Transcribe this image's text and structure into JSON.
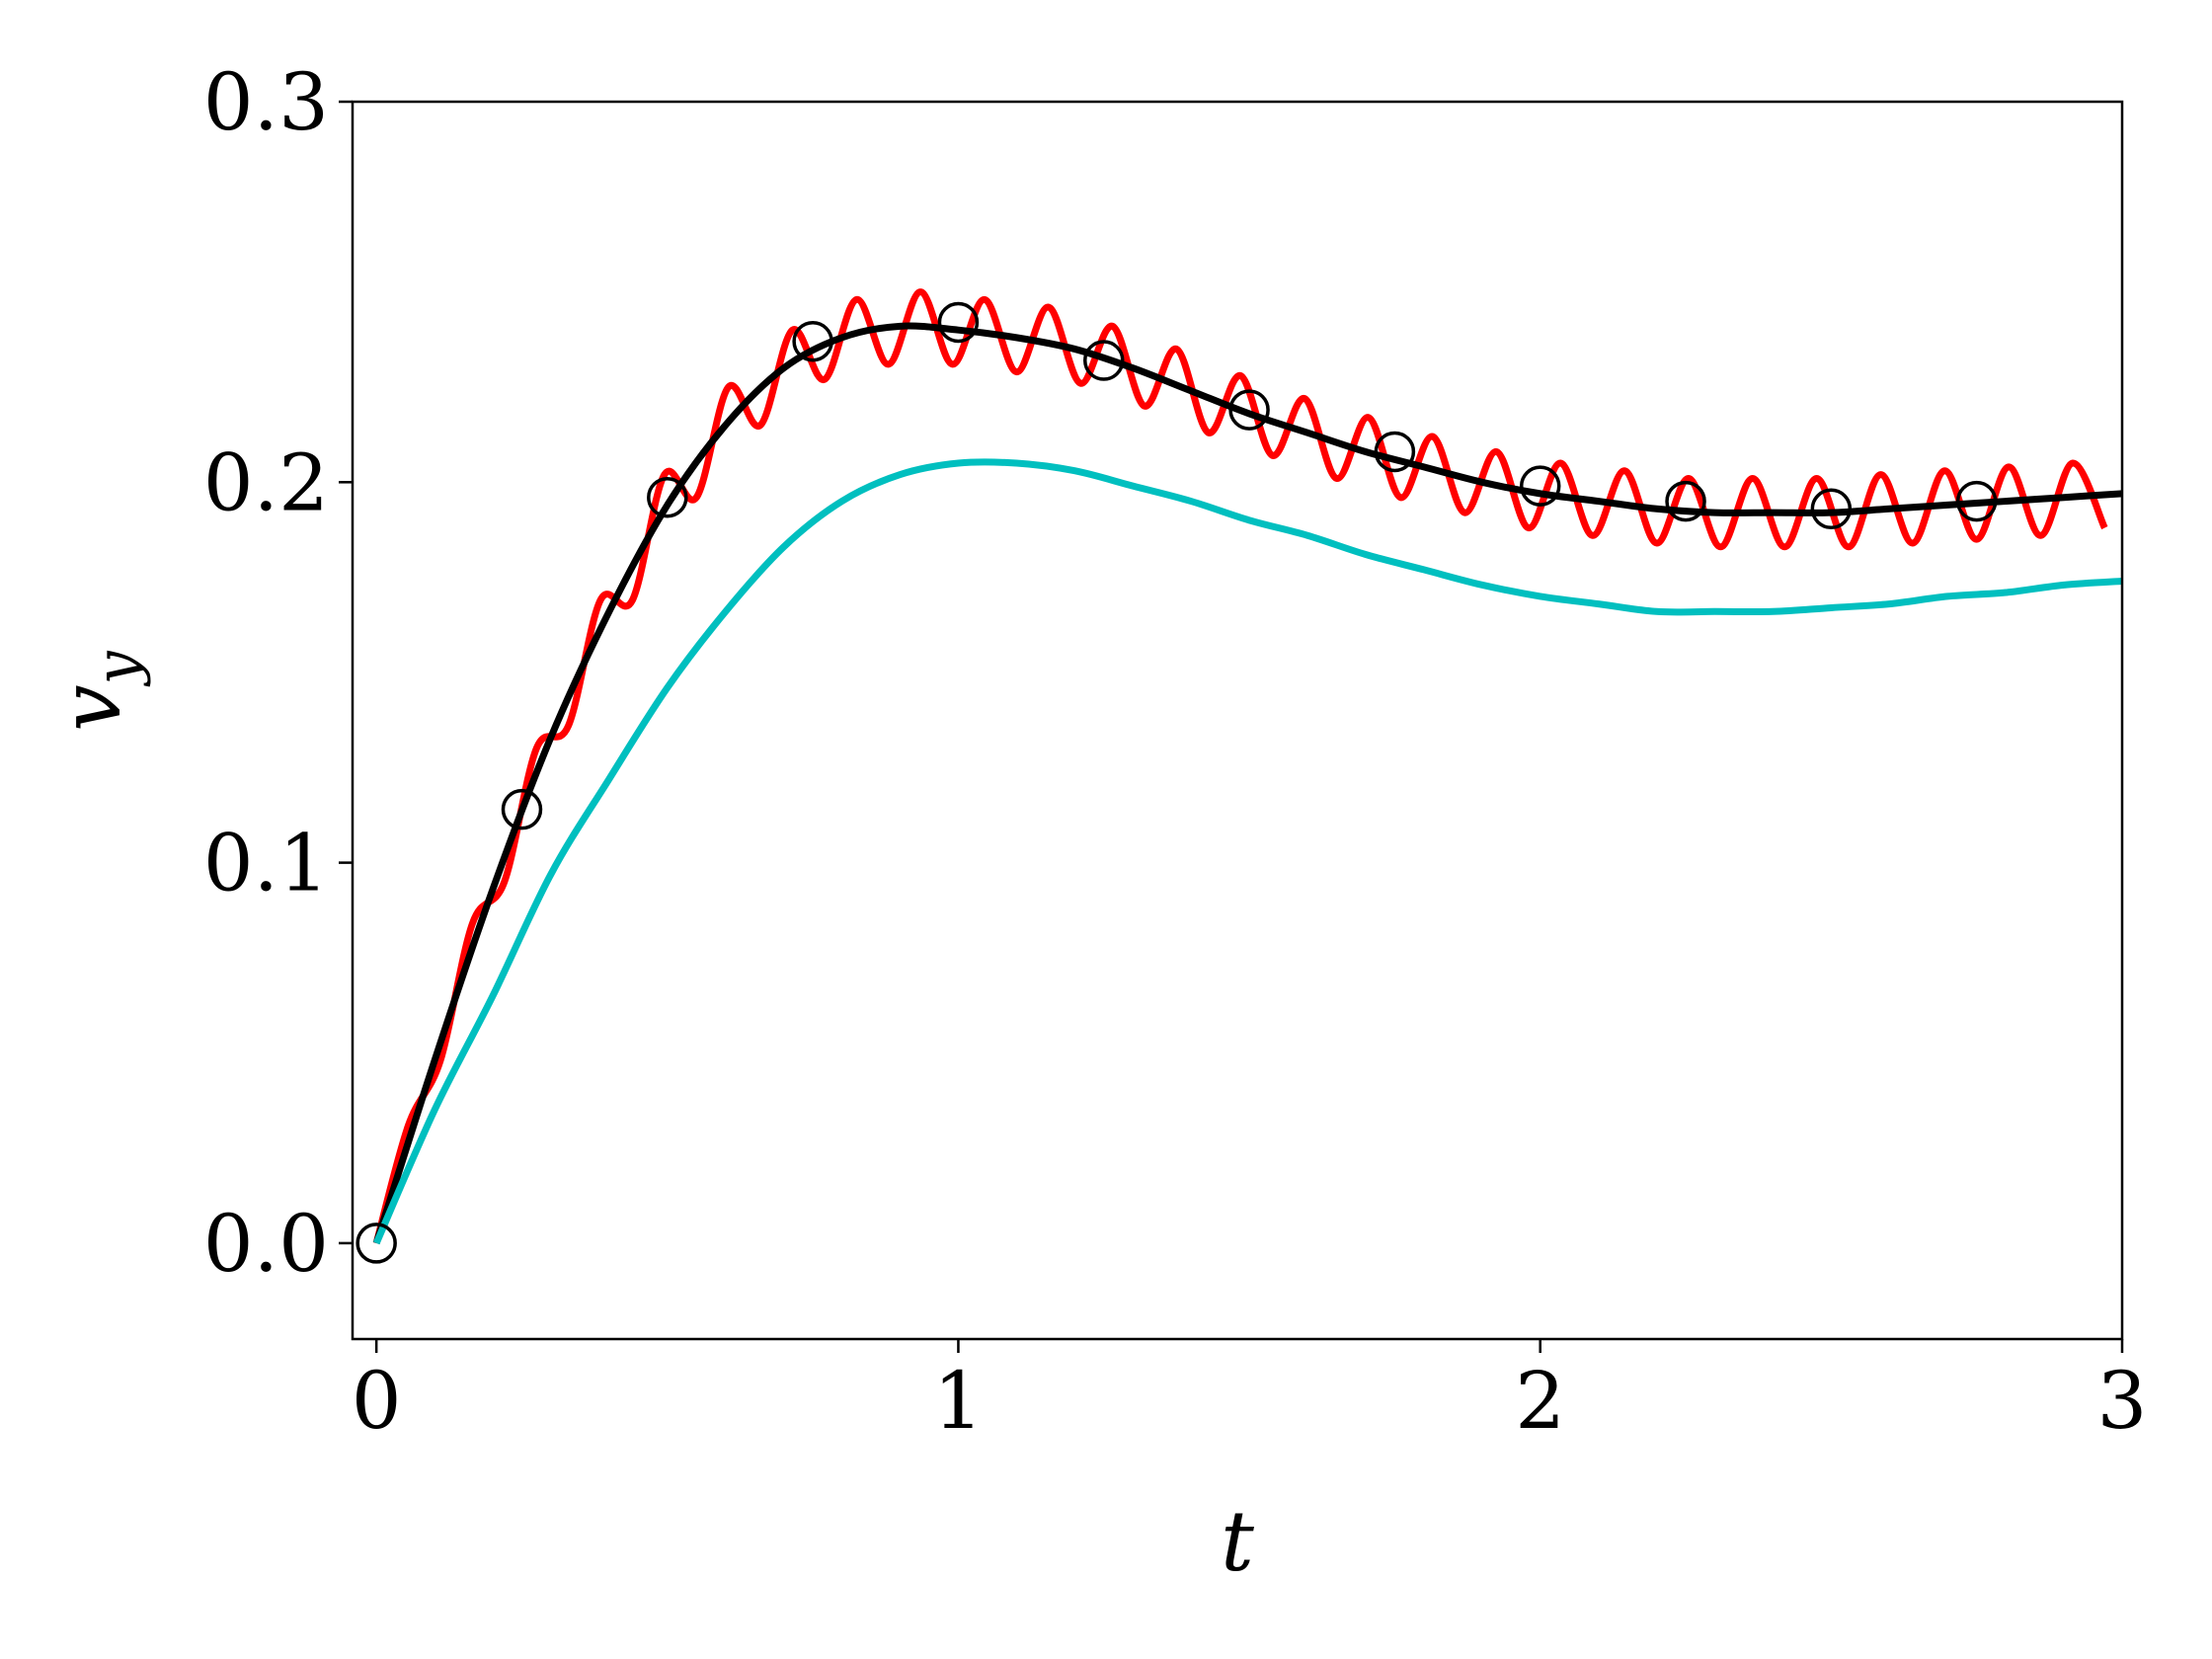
{
  "chart_data": {
    "type": "line",
    "x_label": "t",
    "y_label": "v",
    "y_label_subscript": "y",
    "xlim": [
      -0.041,
      3
    ],
    "ylim": [
      -0.0252,
      0.3
    ],
    "xticks": [
      0,
      1,
      2,
      3
    ],
    "yticks": [
      {
        "value": 0,
        "label": "0.0"
      },
      0.1,
      0.2,
      0.3
    ],
    "grid": false,
    "series": [
      {
        "color": "#ff0000",
        "marker": "none",
        "x": [
          0,
          0.055,
          0.11,
          0.165,
          0.22,
          0.275,
          0.33,
          0.385,
          0.44,
          0.495,
          0.55,
          0.605,
          0.66,
          0.715,
          0.77,
          0.825,
          0.88,
          0.935,
          0.99,
          1.045,
          1.1,
          1.155,
          1.21,
          1.265,
          1.32,
          1.375,
          1.43,
          1.485,
          1.54,
          1.595,
          1.65,
          1.705,
          1.76,
          1.815,
          1.87,
          1.925,
          1.98,
          2.035,
          2.09,
          2.145,
          2.2,
          2.255,
          2.31,
          2.365,
          2.42,
          2.475,
          2.53,
          2.585,
          2.64,
          2.695,
          2.75,
          2.805,
          2.86,
          2.915,
          2.97
        ],
        "values": [
          0,
          0.031,
          0.048,
          0.084,
          0.095,
          0.13,
          0.136,
          0.169,
          0.169,
          0.202,
          0.196,
          0.225,
          0.215,
          0.24,
          0.227,
          0.248,
          0.231,
          0.25,
          0.231,
          0.248,
          0.229,
          0.246,
          0.226,
          0.241,
          0.22,
          0.235,
          0.213,
          0.228,
          0.207,
          0.222,
          0.201,
          0.217,
          0.196,
          0.212,
          0.192,
          0.208,
          0.188,
          0.205,
          0.186,
          0.203,
          0.184,
          0.201,
          0.183,
          0.201,
          0.183,
          0.201,
          0.183,
          0.202,
          0.184,
          0.203,
          0.185,
          0.204,
          0.186,
          0.205,
          0.188
        ]
      },
      {
        "color": "#000000",
        "marker": "none",
        "x": [
          0,
          0.1,
          0.2,
          0.3,
          0.4,
          0.5,
          0.6,
          0.7,
          0.8,
          0.9,
          1.0,
          1.1,
          1.2,
          1.3,
          1.4,
          1.5,
          1.6,
          1.7,
          1.8,
          1.9,
          2.0,
          2.1,
          2.2,
          2.3,
          2.4,
          2.5,
          2.6,
          2.7,
          2.8,
          2.9,
          3.0
        ],
        "values": [
          0,
          0.048,
          0.093,
          0.133,
          0.166,
          0.194,
          0.215,
          0.23,
          0.238,
          0.241,
          0.24,
          0.238,
          0.235,
          0.23,
          0.224,
          0.218,
          0.213,
          0.208,
          0.204,
          0.2,
          0.197,
          0.195,
          0.193,
          0.192,
          0.192,
          0.192,
          0.193,
          0.194,
          0.195,
          0.196,
          0.197
        ]
      },
      {
        "color": "#00bfbf",
        "marker": "none",
        "x": [
          0,
          0.1,
          0.2,
          0.3,
          0.4,
          0.5,
          0.6,
          0.7,
          0.8,
          0.9,
          1.0,
          1.1,
          1.2,
          1.3,
          1.4,
          1.5,
          1.6,
          1.7,
          1.8,
          1.9,
          2.0,
          2.1,
          2.2,
          2.3,
          2.4,
          2.5,
          2.6,
          2.7,
          2.8,
          2.9,
          3.0
        ],
        "values": [
          0,
          0.035,
          0.065,
          0.097,
          0.122,
          0.146,
          0.166,
          0.183,
          0.195,
          0.202,
          0.205,
          0.205,
          0.203,
          0.199,
          0.195,
          0.19,
          0.186,
          0.181,
          0.177,
          0.173,
          0.17,
          0.168,
          0.166,
          0.166,
          0.166,
          0.167,
          0.168,
          0.17,
          0.171,
          0.173,
          0.174
        ]
      },
      {
        "color": "#000000",
        "marker": "circle-open",
        "x": [
          0,
          0.25,
          0.5,
          0.75,
          1.0,
          1.25,
          1.5,
          1.75,
          2.0,
          2.25,
          2.5,
          2.75
        ],
        "values": [
          0,
          0.114,
          0.196,
          0.237,
          0.242,
          0.232,
          0.219,
          0.208,
          0.199,
          0.195,
          0.193,
          0.195
        ]
      }
    ]
  }
}
